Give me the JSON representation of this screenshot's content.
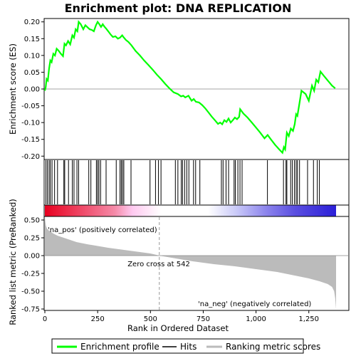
{
  "chart_data": {
    "type": "line",
    "title": "Enrichment plot: DNA REPLICATION",
    "es_panel": {
      "ylabel": "Enrichment score (ES)",
      "ylim": [
        -0.21,
        0.21
      ],
      "yticks": [
        -0.2,
        -0.15,
        -0.1,
        -0.05,
        0.0,
        0.05,
        0.1,
        0.15,
        0.2
      ],
      "ytick_labels": [
        "-0.20",
        "-0.15",
        "-0.10",
        "-0.05",
        "0.00",
        "0.05",
        "0.10",
        "0.15",
        "0.20"
      ],
      "series": [
        {
          "name": "Enrichment profile",
          "color": "#00ff00",
          "x": [
            0,
            4,
            8,
            14,
            20,
            26,
            32,
            40,
            48,
            56,
            64,
            76,
            86,
            93,
            100,
            110,
            120,
            130,
            138,
            146,
            154,
            160,
            170,
            182,
            192,
            202,
            212,
            222,
            232,
            242,
            250,
            258,
            266,
            274,
            282,
            290,
            300,
            312,
            322,
            334,
            346,
            356,
            366,
            372,
            384,
            396,
            410,
            430,
            450,
            470,
            490,
            510,
            530,
            550,
            570,
            590,
            610,
            630,
            645,
            655,
            665,
            680,
            695,
            705,
            715,
            730,
            745,
            760,
            775,
            790,
            805,
            820,
            830,
            840,
            850,
            860,
            870,
            880,
            890,
            900,
            910,
            920,
            925,
            940,
            960,
            980,
            1000,
            1020,
            1040,
            1055,
            1070,
            1090,
            1110,
            1125,
            1132,
            1138,
            1146,
            1155,
            1165,
            1175,
            1183,
            1190,
            1196,
            1205,
            1215,
            1235,
            1250,
            1265,
            1275,
            1285,
            1295,
            1305,
            1320,
            1340,
            1360,
            1375
          ],
          "values": [
            -0.005,
            0.005,
            0.03,
            0.025,
            0.06,
            0.085,
            0.08,
            0.105,
            0.1,
            0.12,
            0.115,
            0.105,
            0.098,
            0.135,
            0.13,
            0.143,
            0.133,
            0.16,
            0.153,
            0.178,
            0.172,
            0.2,
            0.193,
            0.178,
            0.19,
            0.184,
            0.178,
            0.176,
            0.172,
            0.19,
            0.2,
            0.193,
            0.185,
            0.193,
            0.186,
            0.18,
            0.172,
            0.162,
            0.155,
            0.157,
            0.15,
            0.153,
            0.16,
            0.155,
            0.146,
            0.14,
            0.13,
            0.113,
            0.1,
            0.085,
            0.072,
            0.058,
            0.043,
            0.03,
            0.015,
            0.002,
            -0.01,
            -0.015,
            -0.022,
            -0.02,
            -0.025,
            -0.02,
            -0.035,
            -0.03,
            -0.038,
            -0.04,
            -0.048,
            -0.058,
            -0.07,
            -0.082,
            -0.093,
            -0.104,
            -0.1,
            -0.105,
            -0.093,
            -0.098,
            -0.088,
            -0.1,
            -0.093,
            -0.085,
            -0.09,
            -0.083,
            -0.06,
            -0.073,
            -0.085,
            -0.1,
            -0.115,
            -0.13,
            -0.147,
            -0.137,
            -0.15,
            -0.166,
            -0.18,
            -0.19,
            -0.173,
            -0.18,
            -0.13,
            -0.14,
            -0.118,
            -0.125,
            -0.105,
            -0.075,
            -0.08,
            -0.045,
            -0.005,
            -0.015,
            -0.035,
            0.01,
            -0.005,
            0.028,
            0.02,
            0.052,
            0.04,
            0.025,
            0.01,
            0.002
          ]
        }
      ]
    },
    "hits": {
      "name": "Hits",
      "color": "#000000",
      "positions": [
        5,
        12,
        20,
        26,
        34,
        46,
        60,
        90,
        94,
        112,
        130,
        138,
        152,
        160,
        208,
        218,
        244,
        250,
        256,
        264,
        290,
        338,
        356,
        362,
        368,
        374,
        408,
        498,
        524,
        538,
        550,
        618,
        630,
        646,
        652,
        662,
        672,
        682,
        704,
        714,
        734,
        836,
        844,
        858,
        870,
        896,
        902,
        914,
        924,
        934,
        1054,
        1130,
        1142,
        1146,
        1164,
        1172,
        1182,
        1190,
        1196,
        1206,
        1244,
        1272,
        1290,
        1300
      ]
    },
    "ranking_colorbar": {
      "colors_low_to_high_rank": [
        "#e8001f",
        "#ffffff",
        "#2b1fd8"
      ]
    },
    "metric_panel": {
      "name": "Ranking metric scores",
      "color": "#bbbbbb",
      "xlabel": "Rank in Ordered Dataset",
      "ylabel": "Ranked list metric (PreRanked)",
      "ylim": [
        -0.77,
        0.55
      ],
      "yticks": [
        -0.75,
        -0.5,
        -0.25,
        0.0,
        0.25,
        0.5
      ],
      "ytick_labels": [
        "-0.75",
        "-0.50",
        "-0.25",
        "0.00",
        "0.25",
        "0.50"
      ],
      "x": [
        0,
        2,
        5,
        10,
        20,
        40,
        60,
        100,
        150,
        200,
        300,
        400,
        500,
        542,
        600,
        700,
        800,
        900,
        1000,
        1100,
        1200,
        1250,
        1300,
        1340,
        1360,
        1370,
        1375,
        1379
      ],
      "values": [
        0.55,
        0.48,
        0.42,
        0.38,
        0.35,
        0.31,
        0.28,
        0.24,
        0.19,
        0.16,
        0.11,
        0.07,
        0.03,
        0.0,
        -0.03,
        -0.08,
        -0.12,
        -0.15,
        -0.19,
        -0.23,
        -0.29,
        -0.32,
        -0.36,
        -0.4,
        -0.44,
        -0.5,
        -0.6,
        -0.75
      ],
      "annotations": [
        {
          "text": "'na_pos' (positively correlated)",
          "color": "#cc0000"
        },
        {
          "text": "Zero cross at 542",
          "color": "#000000"
        },
        {
          "text": "'na_neg' (negatively correlated)",
          "color": "#0000cc"
        }
      ],
      "zero_cross": 542
    },
    "xaxis": {
      "xlim": [
        0,
        1379
      ],
      "xticks": [
        0,
        250,
        500,
        750,
        1000,
        1250
      ],
      "xtick_labels": [
        "0",
        "250",
        "500",
        "750",
        "1,000",
        "1,250"
      ]
    },
    "legend": {
      "placement": "bottom",
      "entries": [
        {
          "label": "Enrichment profile",
          "color": "#00ff00"
        },
        {
          "label": "Hits",
          "color": "#000000"
        },
        {
          "label": "Ranking metric scores",
          "color": "#bbbbbb"
        }
      ]
    }
  }
}
